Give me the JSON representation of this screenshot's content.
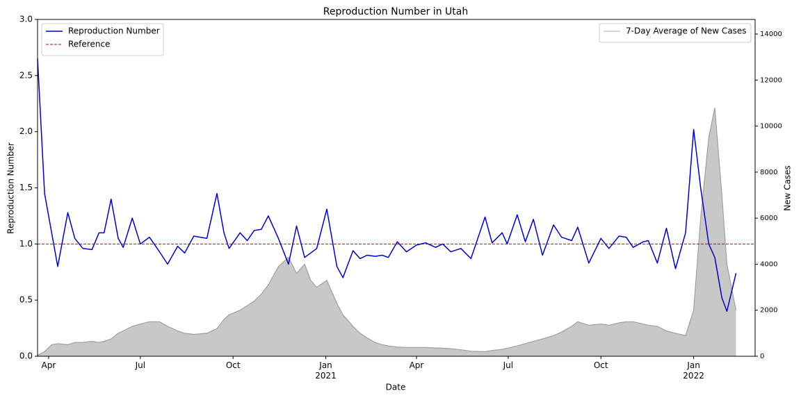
{
  "chart_data": {
    "type": "line",
    "title": "Reproduction Number in Utah",
    "x_label": "Date",
    "y_label": "Reproduction Number",
    "y2_label": "New Cases",
    "x": [
      "2020-03-21",
      "2020-03-28",
      "2020-04-04",
      "2020-04-10",
      "2020-04-20",
      "2020-04-27",
      "2020-05-05",
      "2020-05-14",
      "2020-05-21",
      "2020-05-26",
      "2020-06-02",
      "2020-06-09",
      "2020-06-14",
      "2020-06-23",
      "2020-07-01",
      "2020-07-10",
      "2020-07-20",
      "2020-07-28",
      "2020-08-07",
      "2020-08-14",
      "2020-08-23",
      "2020-09-05",
      "2020-09-15",
      "2020-09-22",
      "2020-09-27",
      "2020-10-08",
      "2020-10-15",
      "2020-10-22",
      "2020-10-29",
      "2020-11-05",
      "2020-11-15",
      "2020-11-25",
      "2020-12-03",
      "2020-12-11",
      "2020-12-17",
      "2020-12-23",
      "2021-01-02",
      "2021-01-12",
      "2021-01-18",
      "2021-01-28",
      "2021-02-04",
      "2021-02-11",
      "2021-02-19",
      "2021-02-26",
      "2021-03-04",
      "2021-03-13",
      "2021-03-22",
      "2021-04-01",
      "2021-04-10",
      "2021-04-20",
      "2021-04-27",
      "2021-05-05",
      "2021-05-15",
      "2021-05-25",
      "2021-06-08",
      "2021-06-15",
      "2021-06-25",
      "2021-06-30",
      "2021-07-10",
      "2021-07-18",
      "2021-07-26",
      "2021-08-04",
      "2021-08-15",
      "2021-08-23",
      "2021-09-02",
      "2021-09-08",
      "2021-09-19",
      "2021-10-01",
      "2021-10-09",
      "2021-10-19",
      "2021-10-26",
      "2021-11-02",
      "2021-11-12",
      "2021-11-17",
      "2021-11-26",
      "2021-12-05",
      "2021-12-14",
      "2021-12-24",
      "2022-01-01",
      "2022-01-08",
      "2022-01-16",
      "2022-01-22",
      "2022-01-29",
      "2022-02-03",
      "2022-02-12"
    ],
    "series": [
      {
        "name": "Reproduction Number",
        "color": "#0000cc",
        "values": [
          2.65,
          1.45,
          1.1,
          0.8,
          1.28,
          1.05,
          0.96,
          0.95,
          1.1,
          1.1,
          1.4,
          1.05,
          0.97,
          1.23,
          1.0,
          1.06,
          0.93,
          0.82,
          0.98,
          0.92,
          1.07,
          1.05,
          1.45,
          1.1,
          0.96,
          1.1,
          1.03,
          1.12,
          1.13,
          1.25,
          1.05,
          0.82,
          1.16,
          0.88,
          0.92,
          0.96,
          1.31,
          0.8,
          0.7,
          0.94,
          0.87,
          0.9,
          0.89,
          0.9,
          0.88,
          1.02,
          0.93,
          0.99,
          1.01,
          0.97,
          1.0,
          0.93,
          0.96,
          0.87,
          1.24,
          1.01,
          1.1,
          1.0,
          1.26,
          1.02,
          1.22,
          0.9,
          1.17,
          1.06,
          1.03,
          1.15,
          0.83,
          1.05,
          0.96,
          1.07,
          1.06,
          0.97,
          1.02,
          1.03,
          0.83,
          1.14,
          0.78,
          1.1,
          2.02,
          1.5,
          1.0,
          0.88,
          0.52,
          0.4,
          0.74
        ]
      },
      {
        "name": "7-Day Average of New Cases",
        "color": "#c8c8c8",
        "axis": "y2",
        "area": true,
        "values": [
          50,
          200,
          500,
          550,
          500,
          600,
          600,
          650,
          600,
          650,
          750,
          1000,
          1100,
          1300,
          1400,
          1500,
          1500,
          1300,
          1100,
          1000,
          950,
          1000,
          1200,
          1600,
          1800,
          2000,
          2200,
          2400,
          2700,
          3100,
          3900,
          4300,
          3600,
          4000,
          3300,
          3000,
          3300,
          2300,
          1800,
          1300,
          1000,
          800,
          600,
          500,
          450,
          400,
          380,
          380,
          380,
          360,
          350,
          330,
          280,
          220,
          200,
          250,
          300,
          350,
          450,
          550,
          650,
          750,
          900,
          1050,
          1300,
          1500,
          1350,
          1400,
          1350,
          1450,
          1500,
          1500,
          1400,
          1350,
          1300,
          1100,
          1000,
          900,
          2000,
          6000,
          9500,
          10800,
          7000,
          4000,
          2000
        ]
      }
    ],
    "reference": {
      "name": "Reference",
      "value": 1,
      "color": "#cc0000"
    },
    "xlim": [
      "2020-03-21",
      "2022-03-03"
    ],
    "xticks": [
      {
        "value": "2020-04-01",
        "label": "Apr"
      },
      {
        "value": "2020-07-01",
        "label": "Jul"
      },
      {
        "value": "2020-10-01",
        "label": "Oct"
      },
      {
        "value": "2021-01-01",
        "label": "Jan\n2021"
      },
      {
        "value": "2021-04-01",
        "label": "Apr"
      },
      {
        "value": "2021-07-01",
        "label": "Jul"
      },
      {
        "value": "2021-10-01",
        "label": "Oct"
      },
      {
        "value": "2022-01-01",
        "label": "Jan\n2022"
      }
    ],
    "ylim": [
      0,
      3
    ],
    "yticks": [
      {
        "value": 0,
        "label": "0.0"
      },
      0.5,
      {
        "value": 1,
        "label": "1.0"
      },
      1.5,
      {
        "value": 2,
        "label": "2.0"
      },
      2.5,
      {
        "value": 3,
        "label": "3.0"
      }
    ],
    "y2lim": [
      0,
      14634
    ],
    "y2ticks": [
      0,
      2000,
      4000,
      6000,
      8000,
      10000,
      12000,
      14000
    ],
    "legend": "upper left",
    "legend2": "upper right"
  }
}
